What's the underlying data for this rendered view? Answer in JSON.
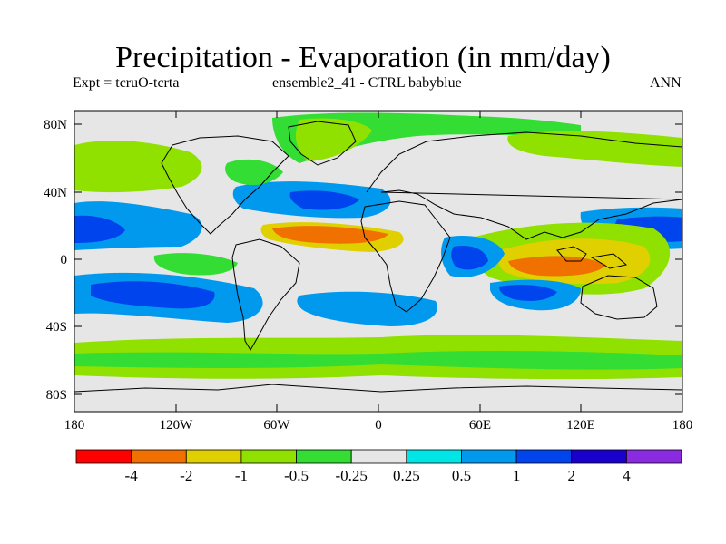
{
  "header": {
    "title": "Precipitation - Evaporation (in mm/day)",
    "expt": "Expt = tcruO-tcrta",
    "ensemble": "ensemble2_41 - CTRL babyblue",
    "season": "ANN"
  },
  "axes": {
    "lat_labels": [
      "80N",
      "40N",
      "0",
      "40S",
      "80S"
    ],
    "lon_labels": [
      "180",
      "120W",
      "60W",
      "0",
      "60E",
      "120E",
      "180"
    ]
  },
  "colorbar": {
    "colors": [
      "#ff0000",
      "#f07000",
      "#e0d000",
      "#90e000",
      "#33dd33",
      "#e6e6e6",
      "#00e6e6",
      "#0099ee",
      "#0044ee",
      "#1a00cc",
      "#8a2be2"
    ],
    "labels": [
      "-4",
      "-2",
      "-1",
      "-0.5",
      "-0.25",
      "0.25",
      "0.5",
      "1",
      "2",
      "4"
    ]
  },
  "colors": {
    "land_ocean_background": "#e6e6e6",
    "coastline": "#000000"
  }
}
